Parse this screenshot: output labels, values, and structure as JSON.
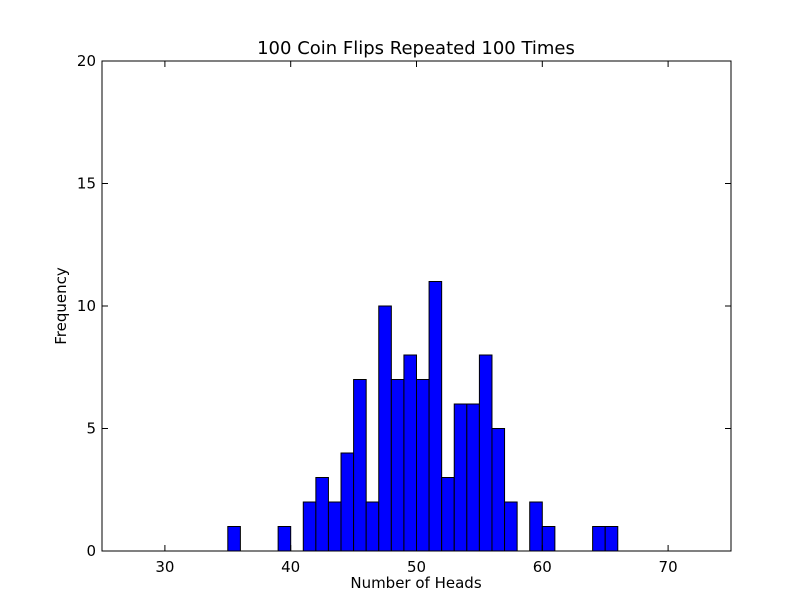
{
  "chart_data": {
    "type": "bar",
    "title": "100 Coin Flips Repeated 100 Times",
    "xlabel": "Number of Heads",
    "ylabel": "Frequency",
    "xlim": [
      25,
      75
    ],
    "ylim": [
      0,
      20
    ],
    "xticks": [
      30,
      40,
      50,
      60,
      70
    ],
    "yticks": [
      0,
      5,
      10,
      15,
      20
    ],
    "bar_width": 1,
    "bar_color": "#0000ff",
    "grid": false,
    "bins": [
      {
        "x": 35,
        "value": 1
      },
      {
        "x": 39,
        "value": 1
      },
      {
        "x": 41,
        "value": 2
      },
      {
        "x": 42,
        "value": 3
      },
      {
        "x": 43,
        "value": 2
      },
      {
        "x": 44,
        "value": 4
      },
      {
        "x": 45,
        "value": 7
      },
      {
        "x": 46,
        "value": 2
      },
      {
        "x": 47,
        "value": 10
      },
      {
        "x": 48,
        "value": 7
      },
      {
        "x": 49,
        "value": 8
      },
      {
        "x": 50,
        "value": 7
      },
      {
        "x": 51,
        "value": 11
      },
      {
        "x": 52,
        "value": 3
      },
      {
        "x": 53,
        "value": 6
      },
      {
        "x": 54,
        "value": 6
      },
      {
        "x": 55,
        "value": 8
      },
      {
        "x": 56,
        "value": 5
      },
      {
        "x": 57,
        "value": 2
      },
      {
        "x": 59,
        "value": 2
      },
      {
        "x": 60,
        "value": 1
      },
      {
        "x": 64,
        "value": 1
      },
      {
        "x": 65,
        "value": 1
      }
    ]
  }
}
